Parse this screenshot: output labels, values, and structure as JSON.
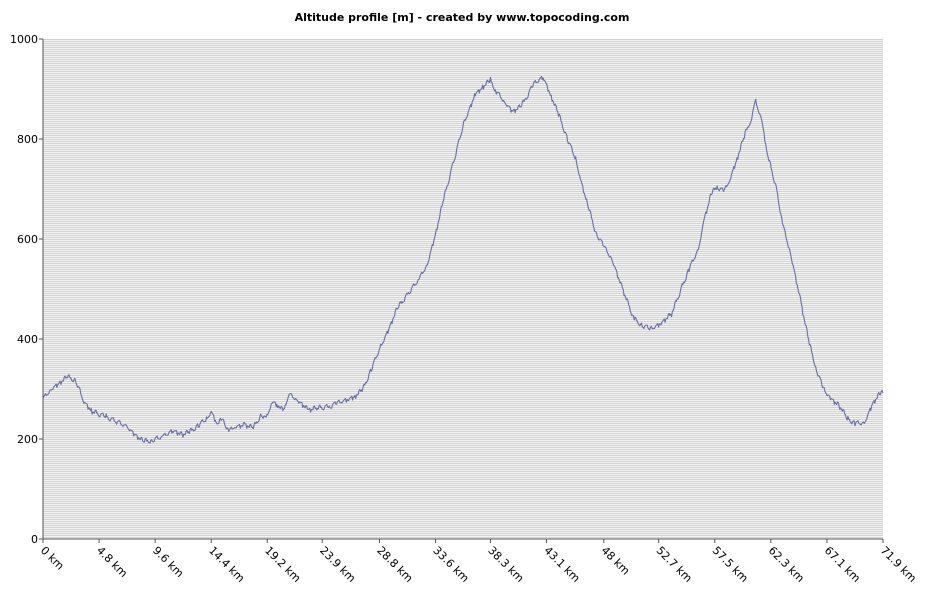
{
  "chart_data": {
    "type": "line",
    "title": "Altitude profile [m] - created by www.topocoding.com",
    "xlabel": "",
    "ylabel": "",
    "x_unit": "km",
    "xlim": [
      0,
      71.9
    ],
    "ylim": [
      0,
      1000
    ],
    "y_ticks": [
      0,
      200,
      400,
      600,
      800,
      1000
    ],
    "y_tick_labels": [
      "0",
      "200",
      "400",
      "600",
      "800",
      "1000"
    ],
    "x_ticks": [
      0,
      4.8,
      9.6,
      14.4,
      19.2,
      23.9,
      28.8,
      33.6,
      38.3,
      43.1,
      48,
      52.7,
      57.5,
      62.3,
      67.1,
      71.9
    ],
    "x_tick_labels": [
      "0 km",
      "4.8 km",
      "9.6 km",
      "14.4 km",
      "19.2 km",
      "23.9 km",
      "28.8 km",
      "33.6 km",
      "38.3 km",
      "43.1 km",
      "48 km",
      "52.7 km",
      "57.5 km",
      "62.3 km",
      "67.1 km",
      "71.9 km"
    ],
    "grid": true,
    "line_color": "#6b6fa6",
    "series": [
      {
        "x": [
          0,
          0.7,
          1.4,
          2.1,
          2.8,
          3.1,
          3.5,
          4.2,
          5.4,
          6.3,
          7.2,
          7.9,
          8.6,
          9.3,
          10.3,
          11.1,
          11.9,
          12.6,
          13.3,
          14.0,
          14.4,
          14.9,
          15.4,
          15.9,
          16.4,
          17.3,
          18.0,
          18.7,
          19.1,
          19.6,
          20.1,
          20.6,
          21.0,
          21.7,
          22.7,
          23.5,
          24.5,
          25.2,
          26.1,
          26.7,
          27.4,
          28.1,
          28.9,
          29.6,
          30.3,
          31.2,
          32.2,
          32.9,
          33.6,
          34.3,
          35.2,
          36.0,
          37.0,
          37.7,
          38.3,
          38.8,
          39.5,
          40.2,
          40.9,
          41.3,
          42.0,
          42.8,
          43.5,
          44.2,
          44.9,
          45.6,
          46.0,
          46.6,
          47.3,
          48.0,
          48.7,
          49.6,
          50.6,
          51.3,
          52.0,
          52.9,
          53.8,
          54.7,
          55.3,
          56.1,
          56.6,
          57.2,
          57.7,
          58.3,
          58.8,
          59.4,
          60.1,
          60.6,
          61.0,
          61.5,
          62.0,
          62.8,
          63.3,
          64.0,
          64.9,
          65.6,
          66.2,
          66.8,
          67.4,
          68.2,
          68.9,
          69.5,
          70.3,
          71.0,
          71.6,
          71.9
        ],
        "y": [
          280,
          300,
          312,
          324,
          318,
          300,
          275,
          255,
          245,
          235,
          225,
          208,
          195,
          198,
          205,
          218,
          208,
          215,
          228,
          240,
          255,
          230,
          240,
          215,
          225,
          228,
          222,
          250,
          240,
          275,
          268,
          255,
          290,
          280,
          258,
          262,
          265,
          272,
          280,
          285,
          300,
          340,
          385,
          420,
          460,
          490,
          520,
          550,
          610,
          680,
          760,
          830,
          890,
          905,
          918,
          895,
          875,
          855,
          865,
          880,
          910,
          925,
          885,
          845,
          800,
          760,
          720,
          670,
          615,
          585,
          560,
          500,
          440,
          428,
          420,
          432,
          450,
          505,
          540,
          580,
          640,
          690,
          705,
          695,
          720,
          760,
          810,
          840,
          875,
          840,
          770,
          700,
          630,
          570,
          470,
          390,
          340,
          300,
          282,
          265,
          240,
          232,
          232,
          270,
          290,
          292
        ]
      }
    ]
  }
}
